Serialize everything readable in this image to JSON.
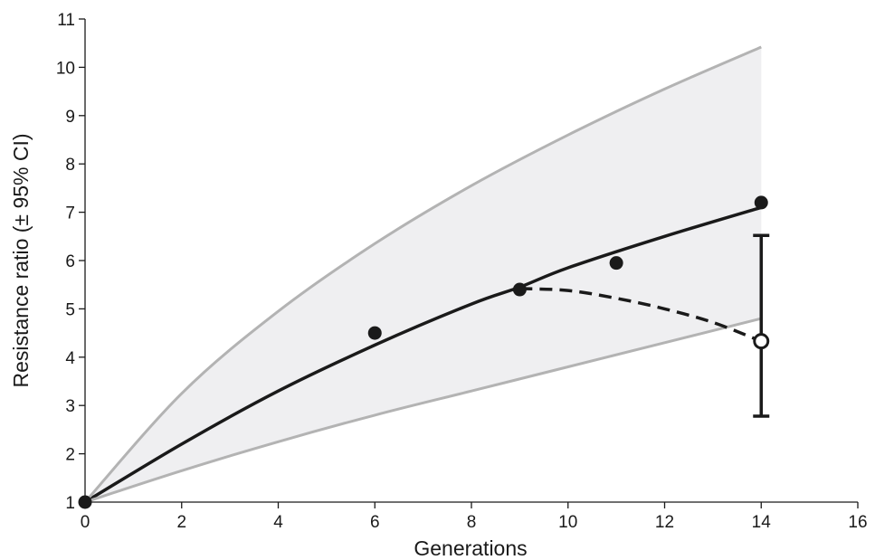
{
  "chart_data": {
    "type": "scatter",
    "title": "",
    "xlabel": "Generations",
    "ylabel": "Resistance ratio  (± 95% CI)",
    "xlim": [
      0,
      16
    ],
    "ylim": [
      1,
      11
    ],
    "xticks": [
      0,
      2,
      4,
      6,
      8,
      10,
      12,
      14,
      16
    ],
    "yticks": [
      1,
      2,
      3,
      4,
      5,
      6,
      7,
      8,
      9,
      10,
      11
    ],
    "grid": false,
    "legend": "none",
    "series": [
      {
        "kind": "points-filled",
        "color": "#1a1a1a",
        "x": [
          0,
          6,
          9,
          11,
          14
        ],
        "y": [
          1.0,
          4.5,
          5.4,
          5.95,
          7.2
        ]
      },
      {
        "kind": "fitted-curve",
        "color": "#1a1a1a",
        "x": [
          0,
          2,
          4,
          6,
          8,
          9,
          10,
          12,
          14
        ],
        "y": [
          1.0,
          2.2,
          3.3,
          4.25,
          5.1,
          5.45,
          5.85,
          6.5,
          7.1
        ]
      },
      {
        "kind": "ci-upper",
        "color": "#b3b3b3",
        "x": [
          0,
          2,
          4,
          6,
          8,
          10,
          12,
          14
        ],
        "y": [
          1.0,
          3.25,
          4.95,
          6.35,
          7.55,
          8.6,
          9.55,
          10.42
        ]
      },
      {
        "kind": "ci-lower",
        "color": "#b3b3b3",
        "x": [
          0,
          2,
          4,
          6,
          8,
          10,
          12,
          14
        ],
        "y": [
          1.0,
          1.65,
          2.25,
          2.8,
          3.3,
          3.8,
          4.3,
          4.8
        ]
      },
      {
        "kind": "dashed-curve",
        "color": "#1a1a1a",
        "x": [
          9,
          10,
          11,
          12,
          13,
          14
        ],
        "y": [
          5.42,
          5.38,
          5.22,
          5.0,
          4.72,
          4.33
        ]
      },
      {
        "kind": "point-open",
        "color": "#1a1a1a",
        "x": [
          14
        ],
        "y": [
          4.33
        ],
        "err_low": [
          2.78
        ],
        "err_high": [
          6.52
        ]
      }
    ],
    "band_color": "#efeff1"
  }
}
